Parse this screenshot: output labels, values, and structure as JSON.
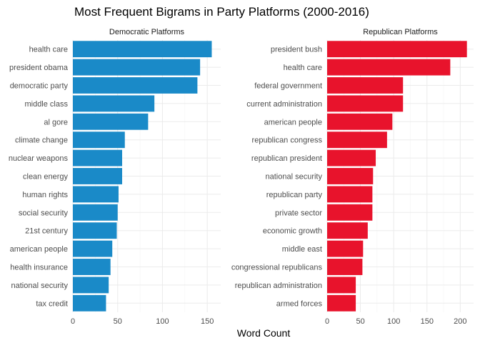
{
  "title": "Most Frequent Bigrams in Party Platforms (2000-2016)",
  "xlabel": "Word Count",
  "chart_data": [
    {
      "type": "bar",
      "orientation": "horizontal",
      "facet": "Democratic Platforms",
      "color": "#1a8ac8",
      "xlim": [
        0,
        165
      ],
      "xticks": [
        0,
        50,
        100,
        150
      ],
      "grid": true,
      "categories": [
        "health care",
        "president obama",
        "democratic party",
        "middle class",
        "al gore",
        "climate change",
        "nuclear weapons",
        "clean energy",
        "human rights",
        "social security",
        "21st century",
        "american people",
        "health insurance",
        "national security",
        "tax credit"
      ],
      "values": [
        155,
        142,
        139,
        91,
        84,
        58,
        55,
        55,
        51,
        50,
        49,
        44,
        42,
        40,
        37
      ]
    },
    {
      "type": "bar",
      "orientation": "horizontal",
      "facet": "Republican Platforms",
      "color": "#e8132c",
      "xlim": [
        0,
        220
      ],
      "xticks": [
        0,
        50,
        100,
        150,
        200
      ],
      "grid": true,
      "categories": [
        "president bush",
        "health care",
        "federal government",
        "current administration",
        "american people",
        "republican congress",
        "republican president",
        "national security",
        "republican party",
        "private sector",
        "economic growth",
        "middle east",
        "congressional republicans",
        "republican administration",
        "armed forces"
      ],
      "values": [
        210,
        185,
        114,
        114,
        98,
        90,
        73,
        69,
        68,
        68,
        61,
        54,
        53,
        43,
        43
      ]
    }
  ]
}
